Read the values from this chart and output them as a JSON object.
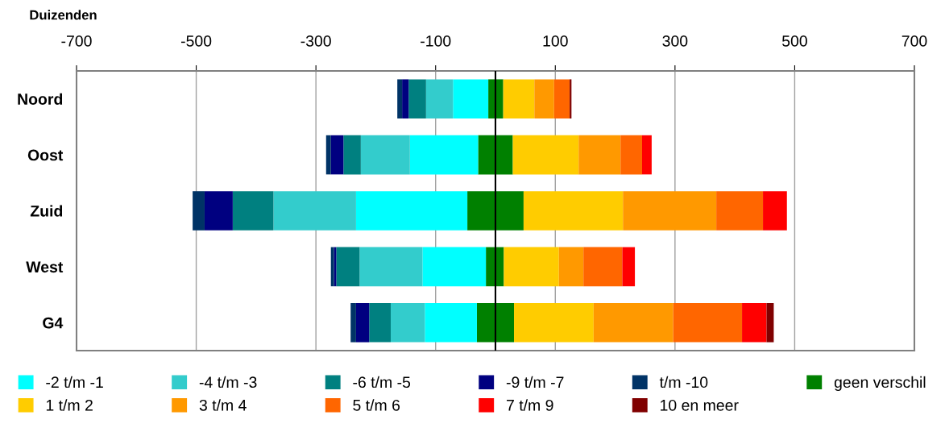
{
  "chart_data": {
    "type": "bar",
    "orientation": "horizontal",
    "stacked": true,
    "xlabel": "Duizenden",
    "categories": [
      "Noord",
      "Oost",
      "Zuid",
      "West",
      "G4"
    ],
    "series": [
      {
        "color": "#008000",
        "values": [
          -12,
          -29,
          -47,
          -16,
          -31
        ]
      },
      {
        "name": "-2 t/m -1",
        "color": "#00ffff",
        "values": [
          -59,
          -114,
          -186,
          -106,
          -87
        ]
      },
      {
        "name": "-4 t/m -3",
        "color": "#33cccc",
        "values": [
          -45,
          -82,
          -138,
          -105,
          -57
        ]
      },
      {
        "name": "-6 t/m -5",
        "color": "#008080",
        "values": [
          -29,
          -29,
          -68,
          -39,
          -36
        ]
      },
      {
        "name": "-9 t/m -7",
        "color": "#000080",
        "values": [
          -11,
          -21,
          -47,
          -4,
          -22
        ]
      },
      {
        "name": "t/m -10",
        "color": "#003366",
        "values": [
          -8,
          -8,
          -20,
          -5,
          -9
        ]
      },
      {
        "name": "geen verschil",
        "color": "#008000",
        "values": [
          13,
          29,
          47,
          14,
          31
        ]
      },
      {
        "name": "1 t/m 2",
        "color": "#ffcc00",
        "values": [
          52,
          110,
          166,
          92,
          133
        ]
      },
      {
        "name": "3 t/m 4",
        "color": "#ff9900",
        "values": [
          33,
          70,
          156,
          41,
          133
        ]
      },
      {
        "name": "5 t/m 6",
        "color": "#ff6600",
        "values": [
          26,
          36,
          78,
          65,
          115
        ]
      },
      {
        "name": "7 t/m 9",
        "color": "#ff0000",
        "values": [
          0,
          16,
          40,
          21,
          41
        ]
      },
      {
        "name": "10 en meer",
        "color": "#800000",
        "values": [
          3,
          0,
          0,
          0,
          12
        ]
      }
    ],
    "xlim": [
      -700,
      700
    ],
    "xticks": [
      -700,
      -500,
      -300,
      -100,
      100,
      300,
      500,
      700
    ],
    "grid": "x",
    "legend": "bottom",
    "ref_lines": [
      {
        "axis": "x",
        "value": 0,
        "color": "#000000"
      }
    ]
  }
}
